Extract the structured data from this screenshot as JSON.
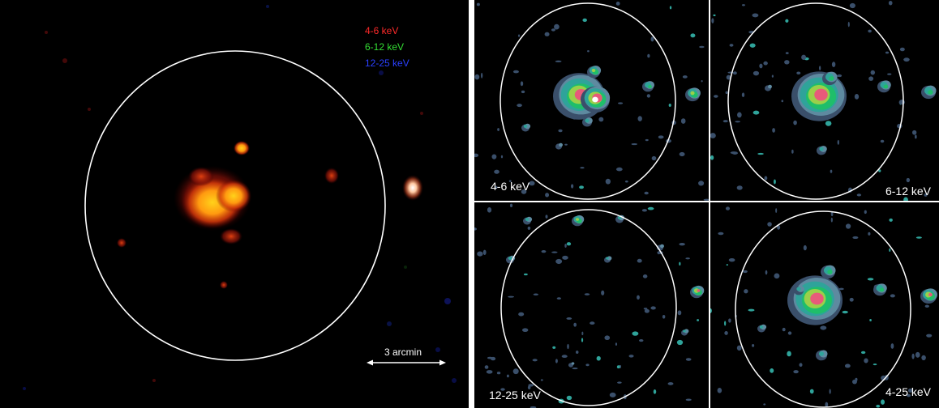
{
  "main_panel": {
    "legend": [
      {
        "text": "4-6 keV",
        "color": "#ff2a2a"
      },
      {
        "text": "6-12 keV",
        "color": "#33dd33"
      },
      {
        "text": "12-25 keV",
        "color": "#2a40ff"
      }
    ],
    "scale_bar_label": "3 arcmin"
  },
  "band_panels": [
    {
      "label": "4-6 keV"
    },
    {
      "label": "6-12 keV"
    },
    {
      "label": "12-25 keV"
    },
    {
      "label": "4-25 keV"
    }
  ],
  "colors": {
    "background": "#000000",
    "ellipse": "#ffffff",
    "separator": "#ffffff"
  }
}
